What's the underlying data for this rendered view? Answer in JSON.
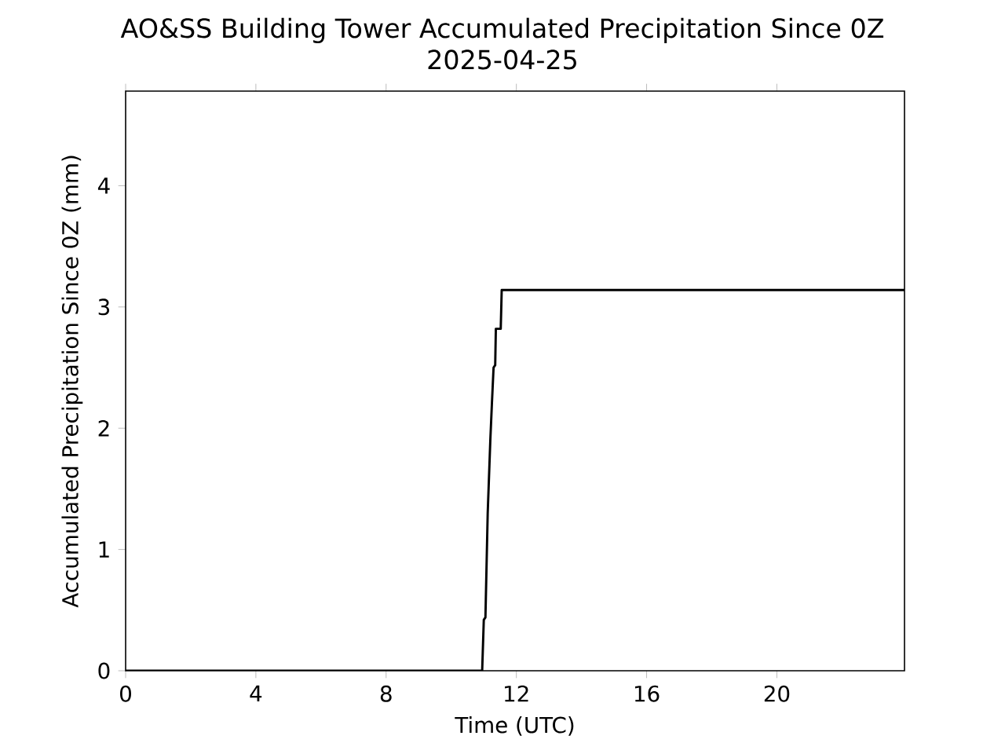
{
  "chart_data": {
    "type": "line",
    "title": "AO&SS Building Tower Accumulated Precipitation Since 0Z",
    "subtitle": "2025-04-25",
    "xlabel": "Time (UTC)",
    "ylabel": "Accumulated Precipitation Since 0Z (mm)",
    "x": [
      0,
      10.95,
      11.0,
      11.05,
      11.12,
      11.2,
      11.25,
      11.3,
      11.35,
      11.37,
      11.52,
      11.55,
      23.92
    ],
    "series": [
      {
        "color": "#000000",
        "values": [
          0,
          0,
          0.42,
          0.44,
          1.3,
          1.9,
          2.21,
          2.5,
          2.52,
          2.82,
          2.82,
          3.14,
          3.14
        ]
      }
    ],
    "xlim": [
      0,
      23.92
    ],
    "ylim": [
      0,
      4.78
    ],
    "xticks": [
      0,
      4,
      8,
      12,
      16,
      20
    ],
    "yticks": [
      0,
      1,
      2,
      3,
      4
    ],
    "marker": "none",
    "line_style": "solid"
  }
}
